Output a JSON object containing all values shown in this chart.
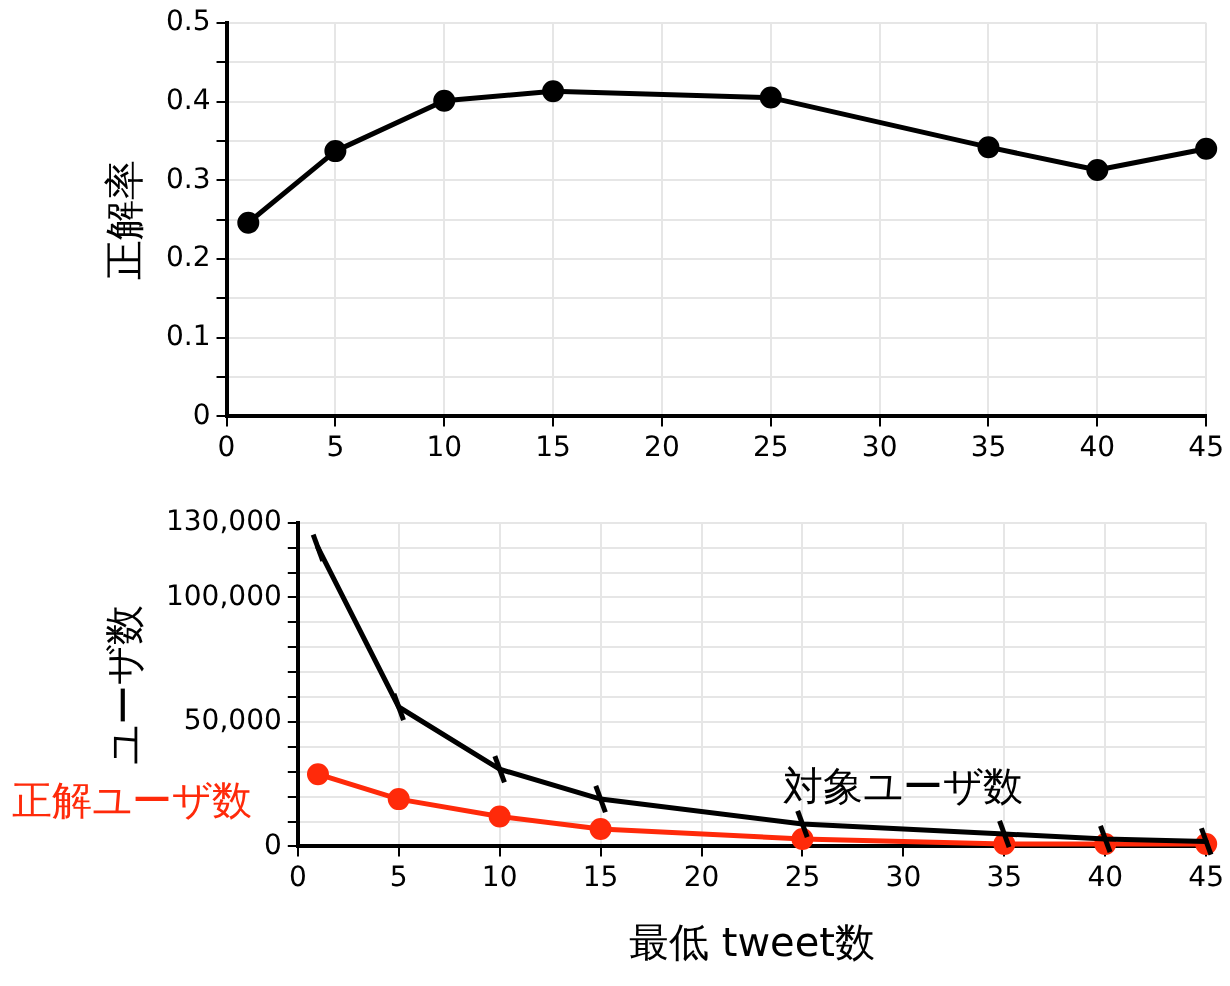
{
  "chart_data": [
    {
      "type": "line",
      "ylabel": "正解率",
      "x": [
        1,
        5,
        10,
        15,
        25,
        35,
        40,
        45
      ],
      "series": [
        {
          "color": "#000000",
          "values": [
            0.246,
            0.337,
            0.401,
            0.413,
            0.405,
            0.342,
            0.313,
            0.34
          ],
          "marker": "circle"
        }
      ],
      "xlim": [
        0,
        45
      ],
      "xticks": [
        0,
        5,
        10,
        15,
        20,
        25,
        30,
        35,
        40,
        45
      ],
      "ylim": [
        0,
        0.5
      ],
      "yticks": [
        0,
        {
          "value": 0.05,
          "label": null
        },
        0.1,
        {
          "value": 0.15,
          "label": null
        },
        0.2,
        {
          "value": 0.25,
          "label": null
        },
        0.3,
        {
          "value": 0.35,
          "label": null
        },
        0.4,
        {
          "value": 0.45,
          "label": null
        },
        0.5
      ],
      "grid": true,
      "legend": false
    },
    {
      "type": "line",
      "xlabel": "最低 tweet数",
      "ylabel": "ユーザ数",
      "x": [
        1,
        5,
        10,
        15,
        25,
        35,
        40,
        45
      ],
      "series": [
        {
          "name": "対象ユーザ数",
          "color": "#000000",
          "marker": "cross",
          "values": [
            120000,
            56000,
            31000,
            19000,
            9000,
            5000,
            3000,
            2000
          ]
        },
        {
          "name": "正解ユーザ数",
          "color": "#ff2a0a",
          "marker": "circle",
          "values": [
            29000,
            19000,
            12000,
            7000,
            3000,
            1000,
            1000,
            1000
          ]
        }
      ],
      "xlim": [
        0,
        45
      ],
      "xticks": [
        0,
        5,
        10,
        15,
        20,
        25,
        30,
        35,
        40,
        45
      ],
      "ylim": [
        0,
        130000
      ],
      "yticks": [
        {
          "value": 0,
          "label": "0"
        },
        {
          "value": 10000,
          "label": null
        },
        {
          "value": 20000,
          "label": null
        },
        {
          "value": 30000,
          "label": null
        },
        {
          "value": 40000,
          "label": null
        },
        {
          "value": 50000,
          "label": "50,000"
        },
        {
          "value": 60000,
          "label": null
        },
        {
          "value": 70000,
          "label": null
        },
        {
          "value": 80000,
          "label": null
        },
        {
          "value": 90000,
          "label": null
        },
        {
          "value": 100000,
          "label": "100,000"
        },
        {
          "value": 110000,
          "label": null
        },
        {
          "value": 120000,
          "label": null
        },
        {
          "value": 130000,
          "label": "130,000"
        }
      ],
      "grid": true,
      "legend": false
    }
  ]
}
